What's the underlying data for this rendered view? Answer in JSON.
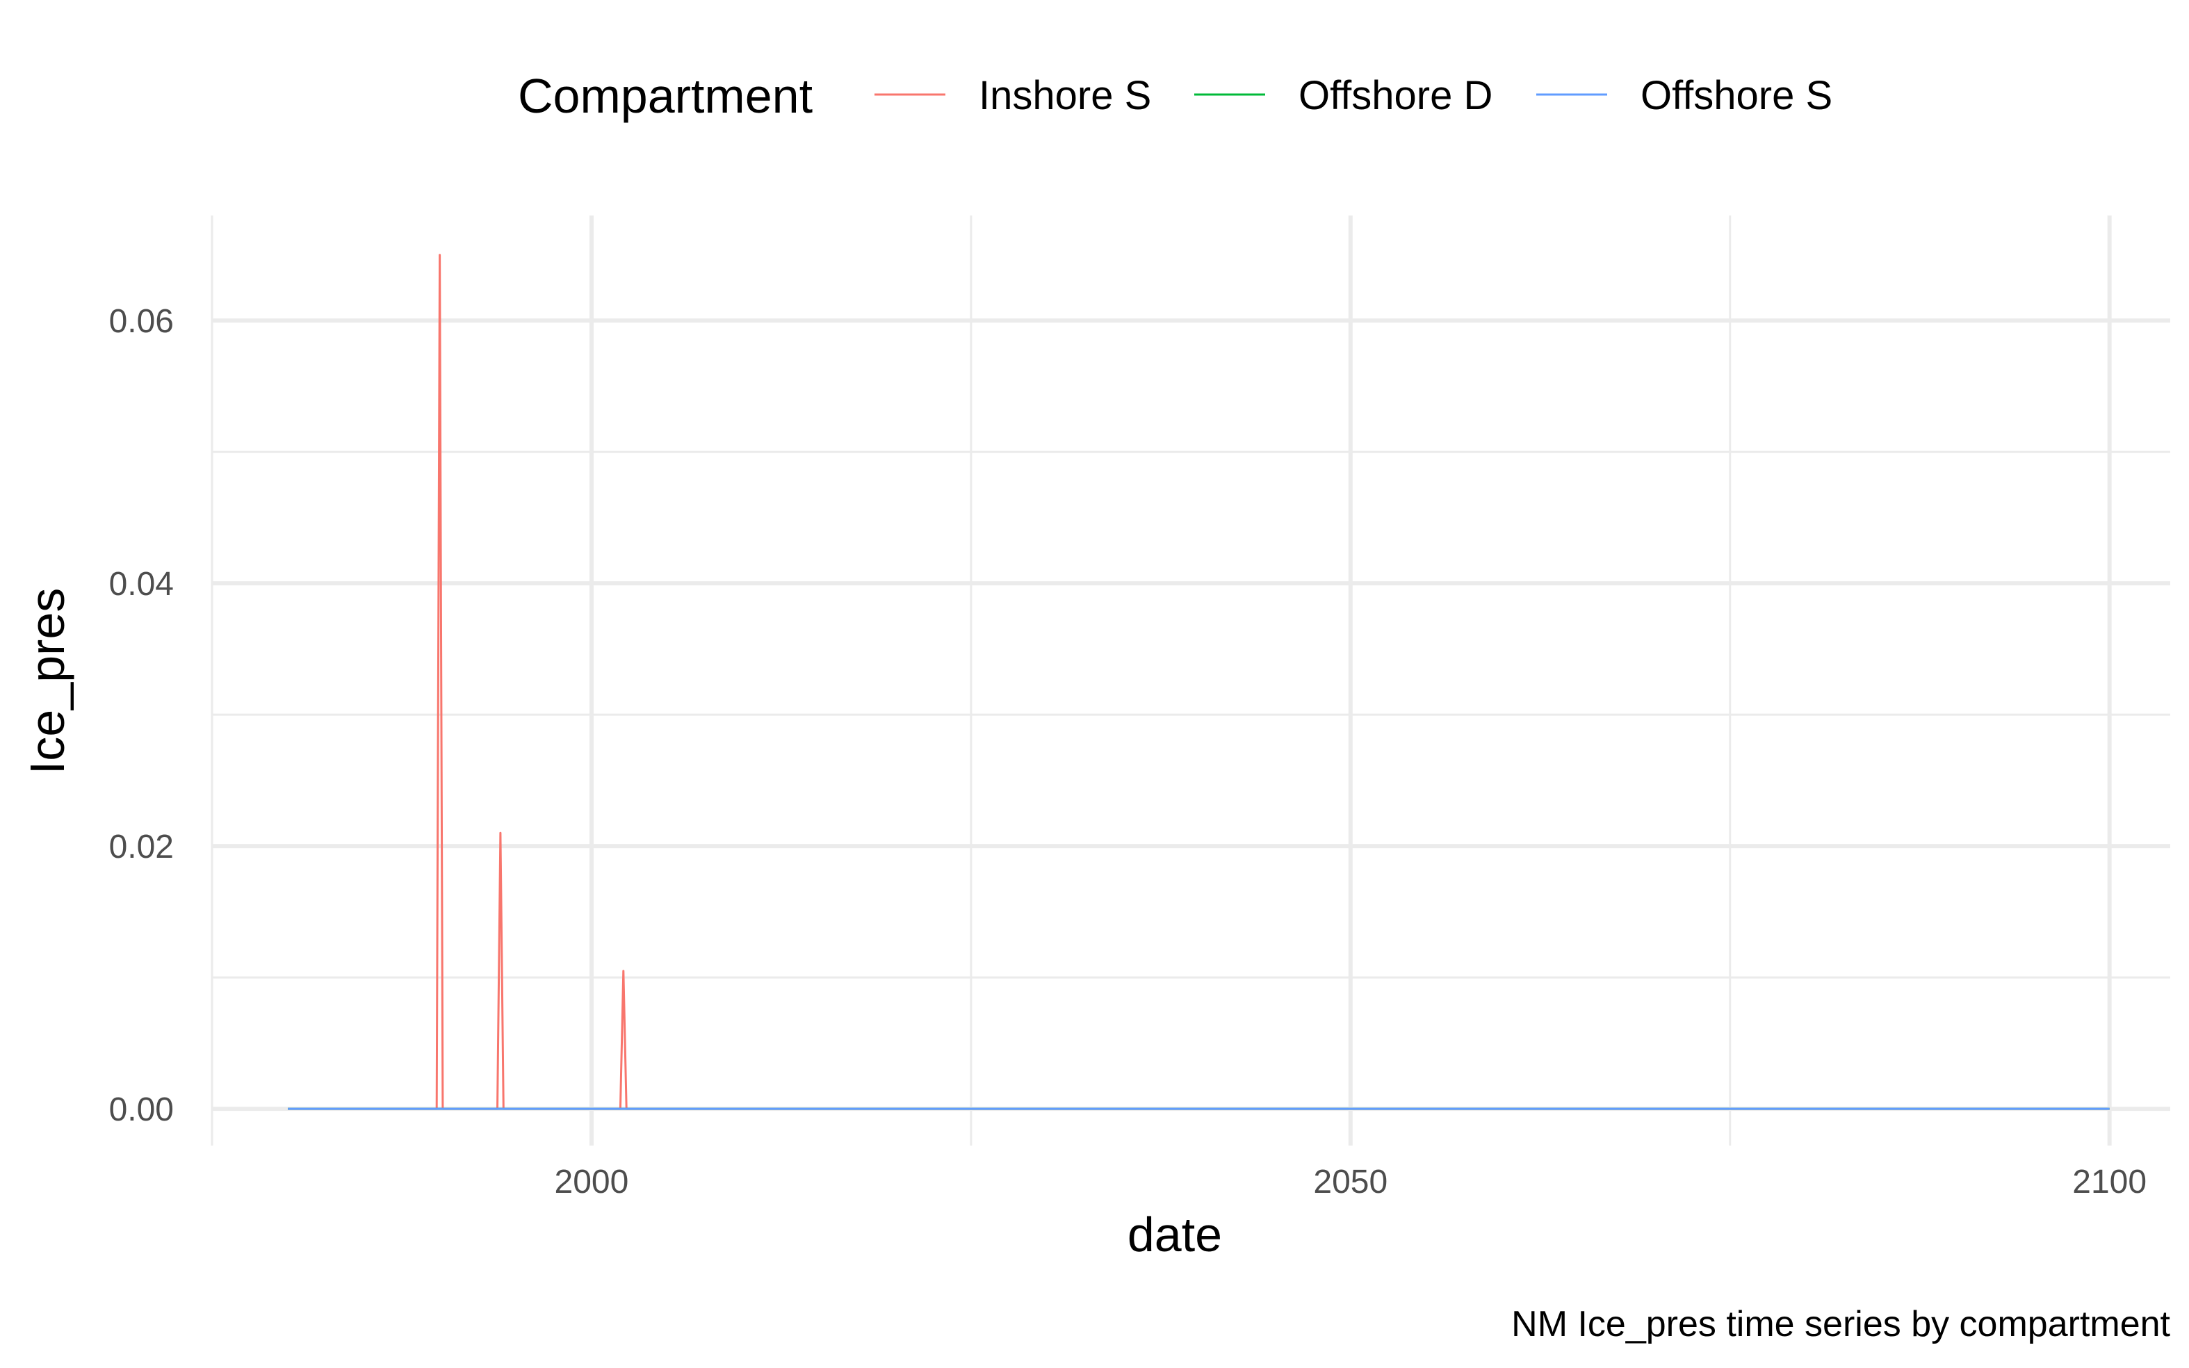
{
  "chart_data": {
    "type": "line",
    "xlabel": "date",
    "ylabel": "Ice_pres",
    "caption": "NM Ice_pres time series by compartment",
    "legend": {
      "title": "Compartment",
      "position": "top"
    },
    "xlim": [
      1975,
      2104
    ],
    "ylim": [
      -0.0028,
      0.068
    ],
    "x_ticks": [
      2000,
      2050,
      2100
    ],
    "x_tick_labels": [
      "2000",
      "2050",
      "2100"
    ],
    "x_minor": [
      1975,
      2025,
      2075
    ],
    "y_ticks": [
      0,
      0.02,
      0.04,
      0.06
    ],
    "y_tick_labels": [
      "0.00",
      "0.02",
      "0.04",
      "0.06"
    ],
    "y_minor": [
      0.01,
      0.03,
      0.05
    ],
    "grid": true,
    "series": [
      {
        "name": "Inshore S",
        "color": "#F8766D",
        "points": [
          [
            1980,
            0
          ],
          [
            1989.8,
            0
          ],
          [
            1990.0,
            0.065
          ],
          [
            1990.2,
            0
          ],
          [
            1993.8,
            0
          ],
          [
            1994.0,
            0.021
          ],
          [
            1994.2,
            0
          ],
          [
            2001.9,
            0
          ],
          [
            2002.1,
            0.0105
          ],
          [
            2002.3,
            0
          ],
          [
            2100,
            0
          ]
        ]
      },
      {
        "name": "Offshore D",
        "color": "#00BA38",
        "points": [
          [
            1980,
            0
          ],
          [
            2100,
            0
          ]
        ]
      },
      {
        "name": "Offshore S",
        "color": "#619CFF",
        "points": [
          [
            1980,
            0
          ],
          [
            2100,
            0
          ]
        ]
      }
    ]
  }
}
